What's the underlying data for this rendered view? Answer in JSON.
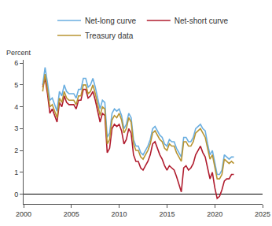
{
  "chart_data": {
    "type": "line",
    "ylabel": "Percent",
    "legend": "top",
    "grid": false,
    "x": [
      2002,
      2002.25,
      2002.5,
      2002.75,
      2003,
      2003.25,
      2003.5,
      2003.75,
      2004,
      2004.25,
      2004.5,
      2004.75,
      2005,
      2005.25,
      2005.5,
      2005.75,
      2006,
      2006.25,
      2006.5,
      2006.75,
      2007,
      2007.25,
      2007.5,
      2007.75,
      2008,
      2008.25,
      2008.5,
      2008.75,
      2009,
      2009.25,
      2009.5,
      2009.75,
      2010,
      2010.25,
      2010.5,
      2010.75,
      2011,
      2011.25,
      2011.5,
      2011.75,
      2012,
      2012.25,
      2012.5,
      2012.75,
      2013,
      2013.25,
      2013.5,
      2013.75,
      2014,
      2014.25,
      2014.5,
      2014.75,
      2015,
      2015.25,
      2015.5,
      2015.75,
      2016,
      2016.25,
      2016.5,
      2016.75,
      2017,
      2017.25,
      2017.5,
      2017.75,
      2018,
      2018.25,
      2018.5,
      2018.75,
      2019,
      2019.25,
      2019.5,
      2019.75,
      2020,
      2020.25,
      2020.5,
      2020.75,
      2021,
      2021.25,
      2021.5,
      2021.75,
      2022
    ],
    "series": [
      {
        "name": "Net-long curve",
        "color": "#6aaee0",
        "values": [
          5.0,
          5.8,
          5.1,
          4.3,
          4.4,
          4.1,
          3.8,
          4.7,
          4.5,
          5.0,
          4.7,
          4.6,
          4.6,
          4.6,
          4.4,
          4.8,
          4.8,
          5.3,
          5.3,
          4.9,
          5.0,
          5.3,
          4.9,
          4.4,
          3.9,
          4.3,
          4.2,
          2.6,
          2.8,
          3.7,
          3.9,
          3.8,
          3.9,
          3.6,
          3.0,
          3.2,
          3.7,
          3.5,
          2.5,
          2.2,
          2.2,
          1.9,
          1.8,
          2.0,
          2.2,
          2.5,
          3.0,
          3.1,
          2.9,
          2.7,
          2.6,
          2.3,
          2.2,
          2.5,
          2.4,
          2.4,
          2.1,
          1.9,
          1.7,
          2.6,
          2.6,
          2.4,
          2.4,
          2.6,
          3.0,
          3.1,
          3.2,
          3.0,
          2.9,
          2.3,
          1.8,
          2.0,
          1.4,
          0.9,
          0.9,
          1.1,
          1.8,
          1.7,
          1.6,
          1.7,
          1.7
        ]
      },
      {
        "name": "Net-short curve",
        "color": "#b01c2e",
        "values": [
          4.9,
          5.3,
          4.6,
          3.7,
          3.9,
          3.6,
          3.3,
          4.2,
          4.0,
          4.5,
          4.2,
          4.1,
          4.1,
          4.1,
          3.9,
          4.3,
          4.3,
          4.8,
          4.8,
          4.4,
          4.5,
          4.7,
          4.3,
          3.8,
          3.3,
          3.7,
          3.6,
          1.9,
          2.1,
          3.0,
          3.2,
          3.1,
          3.2,
          2.9,
          2.3,
          2.5,
          3.0,
          2.8,
          1.8,
          1.5,
          1.5,
          1.2,
          1.1,
          1.3,
          1.5,
          1.8,
          2.3,
          2.4,
          2.1,
          1.8,
          1.6,
          1.3,
          1.1,
          1.3,
          1.2,
          1.1,
          0.8,
          0.4,
          0.1,
          1.2,
          1.3,
          1.1,
          1.2,
          1.4,
          1.8,
          2.0,
          2.2,
          1.9,
          1.7,
          1.2,
          0.7,
          1.0,
          0.3,
          -0.2,
          -0.1,
          0.2,
          0.6,
          0.7,
          0.7,
          0.9,
          0.9
        ]
      },
      {
        "name": "Treasury data",
        "color": "#b89432",
        "values": [
          4.7,
          5.5,
          4.8,
          4.0,
          4.1,
          3.8,
          3.5,
          4.4,
          4.2,
          4.7,
          4.4,
          4.3,
          4.3,
          4.3,
          4.1,
          4.5,
          4.5,
          5.0,
          5.0,
          4.6,
          4.7,
          5.0,
          4.6,
          4.1,
          3.6,
          4.0,
          3.9,
          2.3,
          2.5,
          3.4,
          3.6,
          3.5,
          3.7,
          3.4,
          2.8,
          3.0,
          3.5,
          3.3,
          2.3,
          2.0,
          2.0,
          1.7,
          1.6,
          1.8,
          2.0,
          2.3,
          2.8,
          2.9,
          2.7,
          2.5,
          2.4,
          2.1,
          2.0,
          2.3,
          2.2,
          2.2,
          1.9,
          1.7,
          1.5,
          2.4,
          2.4,
          2.2,
          2.2,
          2.4,
          2.8,
          2.9,
          3.0,
          2.8,
          2.6,
          2.1,
          1.6,
          1.8,
          1.2,
          0.7,
          0.7,
          0.9,
          1.6,
          1.5,
          1.4,
          1.5,
          1.4
        ]
      }
    ],
    "xlim": [
      2000,
      2025
    ],
    "xticks": [
      2000,
      2005,
      2010,
      2015,
      2020,
      2025
    ],
    "ylim": [
      -0.45,
      6.15
    ],
    "yticks": [
      0,
      1,
      2,
      3,
      4,
      5,
      6
    ]
  }
}
